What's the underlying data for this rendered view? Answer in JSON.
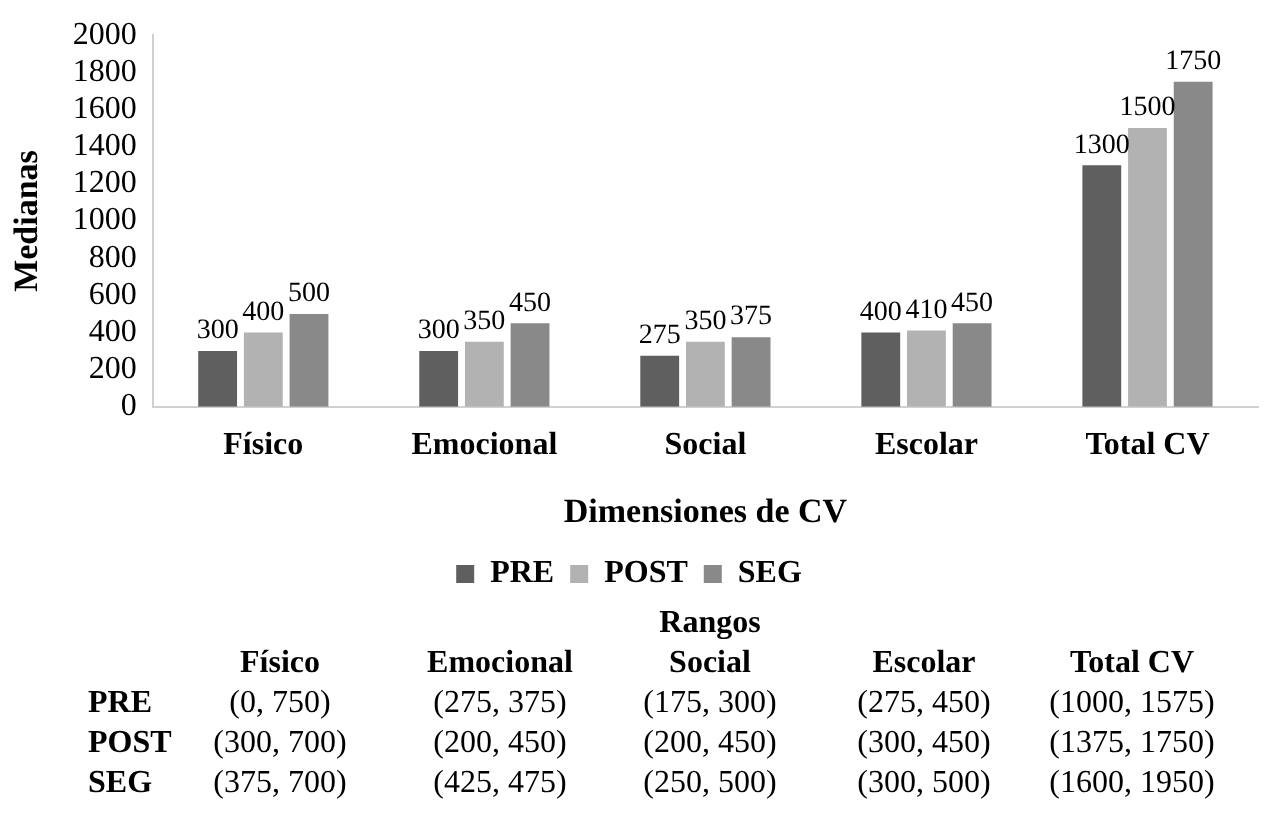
{
  "chart_data": {
    "type": "bar",
    "xlabel": "Dimensiones de CV",
    "ylabel": "Medianas",
    "categories": [
      "Físico",
      "Emocional",
      "Social",
      "Escolar",
      "Total CV"
    ],
    "series": [
      {
        "name": "PRE",
        "color": "#5f5f5f",
        "values": [
          300,
          300,
          275,
          400,
          1300
        ]
      },
      {
        "name": "POST",
        "color": "#b2b2b2",
        "values": [
          400,
          350,
          350,
          410,
          1500
        ]
      },
      {
        "name": "SEG",
        "color": "#898989",
        "values": [
          500,
          450,
          375,
          450,
          1750
        ]
      }
    ],
    "ylim": [
      0,
      2000
    ],
    "yticks": [
      0,
      200,
      400,
      600,
      800,
      1000,
      1200,
      1400,
      1600,
      1800,
      2000
    ],
    "grid": false,
    "legend": "bottom",
    "data_labels": true,
    "annotations": [
      "Rangos",
      "Físico",
      "Emocional",
      "Social",
      "Escolar",
      "Total CV",
      "PRE",
      "(0, 750)",
      "(275, 375)",
      "(175, 300)",
      "(275, 450)",
      "(1000, 1575)",
      "POST",
      "(300, 700)",
      "(200, 450)",
      "(200, 450)",
      "(300, 450)",
      "(1375, 1750)",
      "SEG",
      "(375, 700)",
      "(425, 475)",
      "(250, 500)",
      "(300, 500)",
      "(1600, 1950)"
    ]
  }
}
